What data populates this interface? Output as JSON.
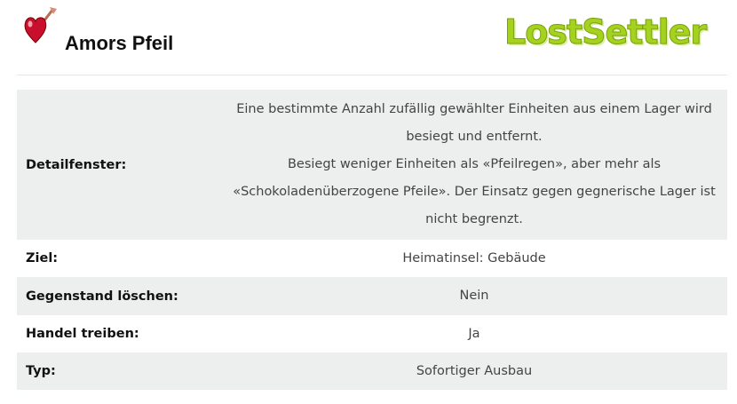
{
  "header": {
    "title": "Amors Pfeil",
    "logo_text": "LostSettler",
    "icon": "heart-arrow-icon"
  },
  "rows": [
    {
      "label": "Detailfenster:",
      "lines": [
        "Eine bestimmte Anzahl zufällig gewählter Einheiten aus einem Lager wird",
        "besiegt und entfernt.",
        "Besiegt weniger Einheiten als «Pfeilregen», aber mehr als",
        "«Schokoladenüberzogene Pfeile». Der Einsatz gegen gegnerische Lager ist",
        "nicht begrenzt."
      ]
    },
    {
      "label": "Ziel:",
      "value": "Heimatinsel: Gebäude"
    },
    {
      "label": "Gegenstand löschen:",
      "value": "Nein"
    },
    {
      "label": "Handel treiben:",
      "value": "Ja"
    },
    {
      "label": "Typ:",
      "value": "Sofortiger Ausbau"
    }
  ]
}
